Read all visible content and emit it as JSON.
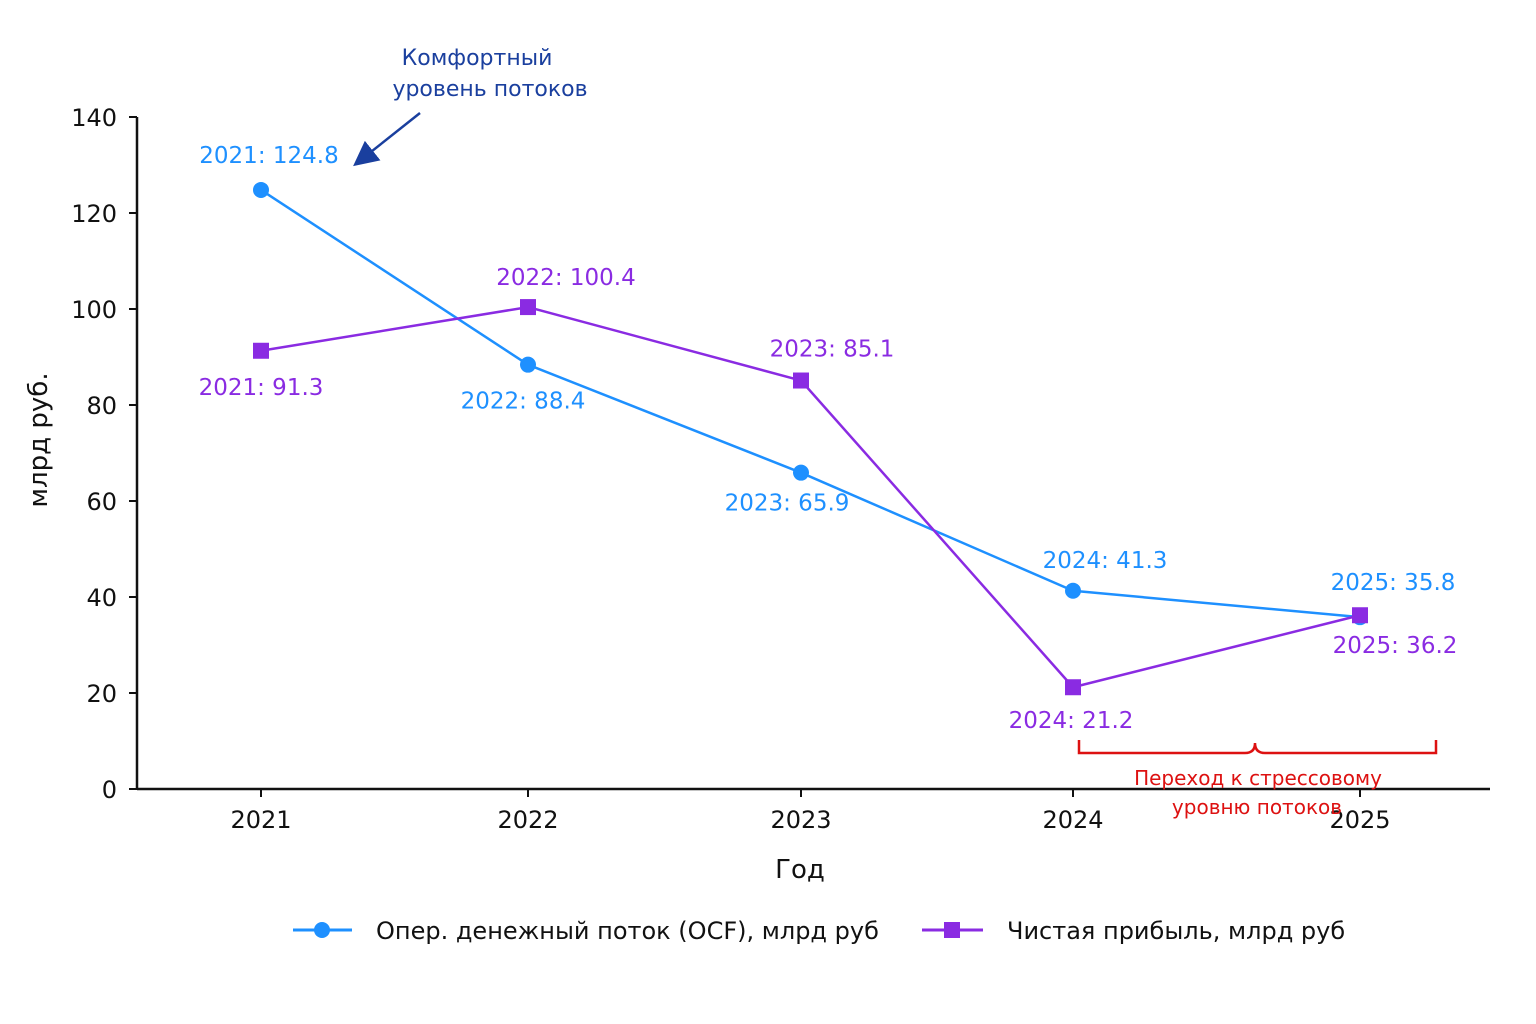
{
  "chart_data": {
    "type": "line",
    "title": "",
    "xlabel": "Год",
    "ylabel": "млрд руб.",
    "categories": [
      "2021",
      "2022",
      "2023",
      "2024",
      "2025"
    ],
    "yticks": [
      "0",
      "20",
      "40",
      "60",
      "80",
      "100",
      "120",
      "140"
    ],
    "ylim": [
      0,
      140
    ],
    "grid": false,
    "legend_position": "bottom",
    "series": [
      {
        "name": "Опер. денежный поток (OCF), млрд руб",
        "marker": "circle",
        "color": "#1e90ff",
        "values": [
          124.8,
          88.4,
          65.9,
          41.3,
          35.8
        ],
        "labels": [
          "2021: 124.8",
          "2022: 88.4",
          "2023: 65.9",
          "2024: 41.3",
          "2025: 35.8"
        ]
      },
      {
        "name": "Чистая прибыль, млрд руб",
        "marker": "square",
        "color": "#8a2be2",
        "values": [
          91.3,
          100.4,
          85.1,
          21.2,
          36.2
        ],
        "labels": [
          "2021: 91.3",
          "2022: 100.4",
          "2023: 85.1",
          "2024: 21.2",
          "2025: 36.2"
        ]
      }
    ],
    "annotations": [
      {
        "lines": [
          "Комфортный",
          "уровень потоков"
        ],
        "color": "#1a3f9e"
      },
      {
        "lines": [
          "Переход к стрессовому",
          "уровню потоков"
        ],
        "color": "#dd1111"
      }
    ]
  }
}
